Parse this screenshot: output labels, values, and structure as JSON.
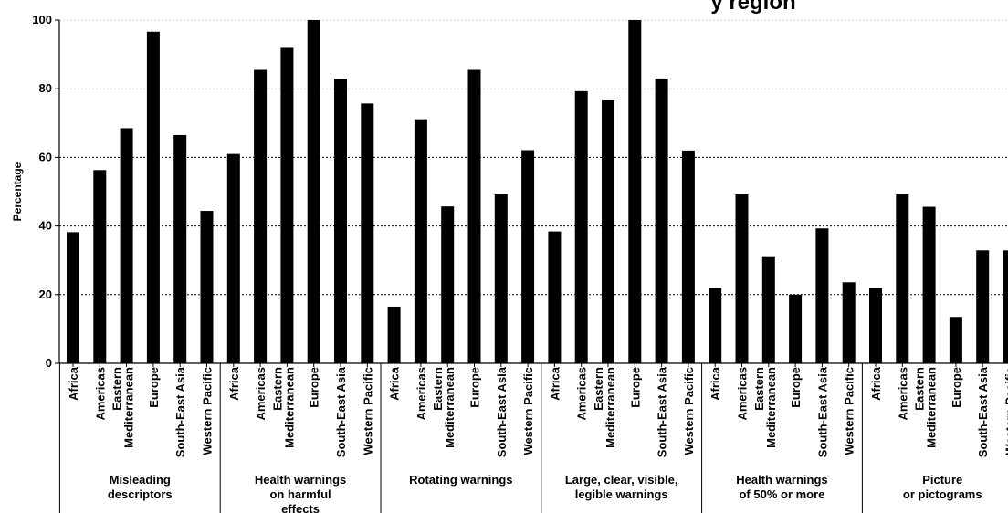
{
  "chart_data": {
    "type": "bar",
    "title": "y  region",
    "ylabel": "Percentage",
    "ylim": [
      0,
      100
    ],
    "yticks": [
      0,
      20,
      40,
      60,
      80,
      100
    ],
    "grid": true,
    "groups": [
      {
        "label": [
          "Misleading",
          "descriptors"
        ],
        "bars": [
          {
            "region": [
              "Africa"
            ],
            "value": 38.2
          },
          {
            "region": [
              "Americas"
            ],
            "value": 56.3
          },
          {
            "region": [
              "Eastern",
              "Mediterranean"
            ],
            "value": 68.5
          },
          {
            "region": [
              "Europe"
            ],
            "value": 96.6
          },
          {
            "region": [
              "South-East Asia"
            ],
            "value": 66.5
          },
          {
            "region": [
              "Western Pacific"
            ],
            "value": 44.4
          }
        ]
      },
      {
        "label": [
          "Health warnings",
          "on harmful",
          "effects"
        ],
        "bars": [
          {
            "region": [
              "Africa"
            ],
            "value": 61.0
          },
          {
            "region": [
              "Americas"
            ],
            "value": 85.5
          },
          {
            "region": [
              "Eastern",
              "Mediterranean"
            ],
            "value": 91.9
          },
          {
            "region": [
              "Europe"
            ],
            "value": 100
          },
          {
            "region": [
              "South-East Asia"
            ],
            "value": 82.8
          },
          {
            "region": [
              "Western Pacific"
            ],
            "value": 75.7
          }
        ]
      },
      {
        "label": [
          "Rotating warnings"
        ],
        "bars": [
          {
            "region": [
              "Africa"
            ],
            "value": 16.5
          },
          {
            "region": [
              "Americas"
            ],
            "value": 71.1
          },
          {
            "region": [
              "Eastern",
              "Mediterranean"
            ],
            "value": 45.7
          },
          {
            "region": [
              "Europe"
            ],
            "value": 85.5
          },
          {
            "region": [
              "South-East Asia"
            ],
            "value": 49.2
          },
          {
            "region": [
              "Western Pacific"
            ],
            "value": 62.1
          }
        ]
      },
      {
        "label": [
          "Large, clear, visible,",
          "legible warnings"
        ],
        "bars": [
          {
            "region": [
              "Africa"
            ],
            "value": 38.4
          },
          {
            "region": [
              "Americas"
            ],
            "value": 79.3
          },
          {
            "region": [
              "Eastern",
              "Mediterranean"
            ],
            "value": 76.6
          },
          {
            "region": [
              "Europe"
            ],
            "value": 100
          },
          {
            "region": [
              "South-East Asia"
            ],
            "value": 83.0
          },
          {
            "region": [
              "Western Pacific"
            ],
            "value": 62.0
          }
        ]
      },
      {
        "label": [
          "Health warnings",
          "of 50% or more"
        ],
        "bars": [
          {
            "region": [
              "Africa"
            ],
            "value": 22.0
          },
          {
            "region": [
              "Americas"
            ],
            "value": 49.2
          },
          {
            "region": [
              "Eastern",
              "Mediterranean"
            ],
            "value": 31.2
          },
          {
            "region": [
              "Europe"
            ],
            "value": 20.0
          },
          {
            "region": [
              "South-East Asia"
            ],
            "value": 39.3
          },
          {
            "region": [
              "Western Pacific"
            ],
            "value": 23.6
          }
        ]
      },
      {
        "label": [
          "Picture",
          "or pictograms"
        ],
        "bars": [
          {
            "region": [
              "Africa"
            ],
            "value": 21.9
          },
          {
            "region": [
              "Americas"
            ],
            "value": 49.2
          },
          {
            "region": [
              "Eastern",
              "Mediterranean"
            ],
            "value": 45.6
          },
          {
            "region": [
              "Europe"
            ],
            "value": 13.5
          },
          {
            "region": [
              "South-East Asia"
            ],
            "value": 32.9
          },
          {
            "region": [
              "Western Pacific"
            ],
            "value": 32.9
          }
        ]
      }
    ]
  }
}
